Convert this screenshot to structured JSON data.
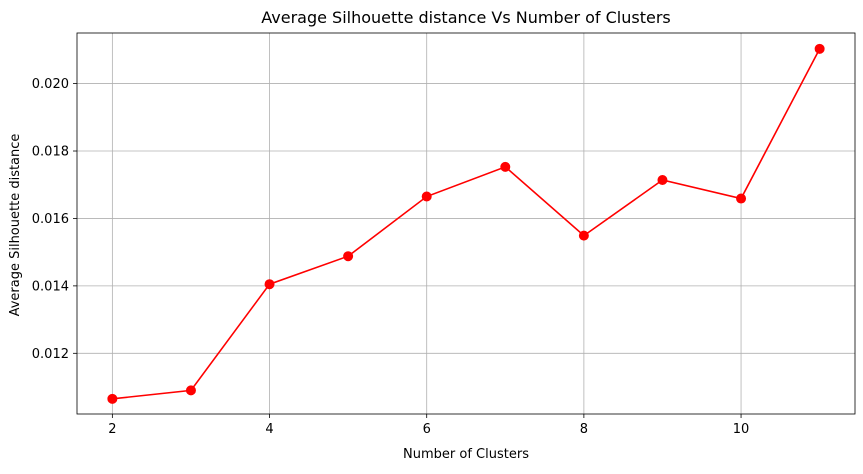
{
  "chart_data": {
    "type": "line",
    "title": "Average Silhouette distance Vs Number of Clusters",
    "xlabel": "Number of Clusters",
    "ylabel": "Average Silhouette distance",
    "x": [
      2,
      3,
      4,
      5,
      6,
      7,
      8,
      9,
      10,
      11
    ],
    "series": [
      {
        "values": [
          0.01065,
          0.0109,
          0.01405,
          0.01488,
          0.01665,
          0.01753,
          0.01549,
          0.01714,
          0.01659,
          0.02103
        ],
        "color": "#ff0000",
        "marker": "circle"
      }
    ],
    "xlim": [
      1.55,
      11.45
    ],
    "ylim": [
      0.0102,
      0.0215
    ],
    "xticks": [
      2,
      4,
      6,
      8,
      10
    ],
    "xtick_labels": [
      "2",
      "4",
      "6",
      "8",
      "10"
    ],
    "yticks": [
      0.012,
      0.014,
      0.016,
      0.018,
      0.02
    ],
    "ytick_labels": [
      "0.012",
      "0.014",
      "0.016",
      "0.018",
      "0.020"
    ],
    "grid": true,
    "legend": "none"
  }
}
